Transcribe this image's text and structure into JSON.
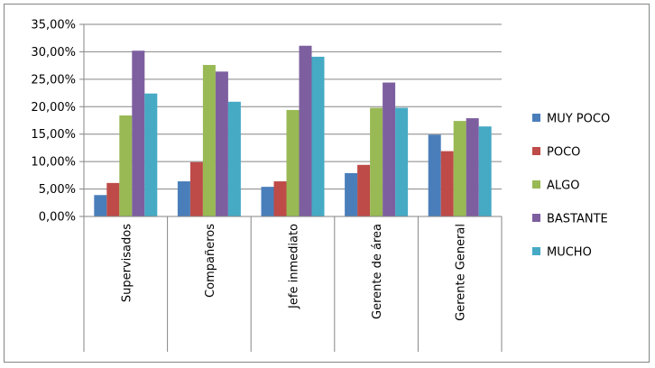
{
  "chart_data": {
    "type": "bar",
    "categories": [
      "Supervisados",
      "Compañeros",
      "Jefe inmediato",
      "Gerente de área",
      "Gerente General"
    ],
    "series": [
      {
        "name": "MUY POCO",
        "color": "#4A7EBB",
        "values": [
          3.9,
          6.4,
          5.4,
          7.9,
          14.9
        ]
      },
      {
        "name": "POCO",
        "color": "#BE4B48",
        "values": [
          6.1,
          9.9,
          6.4,
          9.4,
          11.9
        ]
      },
      {
        "name": "ALGO",
        "color": "#98B954",
        "values": [
          18.4,
          27.6,
          19.4,
          19.8,
          17.4
        ]
      },
      {
        "name": "BASTANTE",
        "color": "#7D5FA0",
        "values": [
          30.2,
          26.4,
          31.1,
          24.4,
          17.9
        ]
      },
      {
        "name": "MUCHO",
        "color": "#46AAC5",
        "values": [
          22.4,
          20.9,
          29.1,
          19.8,
          16.4
        ]
      }
    ],
    "ylim": [
      0,
      35
    ],
    "yticks": [
      "0,00%",
      "5,00%",
      "10,00%",
      "15,00%",
      "20,00%",
      "25,00%",
      "30,00%",
      "35,00%"
    ],
    "grid": true,
    "legend": "right"
  }
}
